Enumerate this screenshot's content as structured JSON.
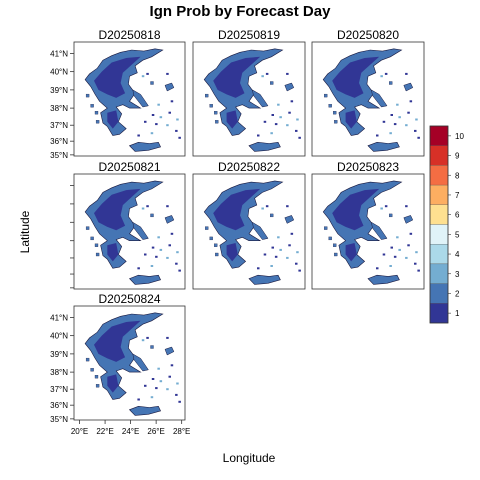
{
  "figure": {
    "title": "Ign Prob by Forecast Day",
    "xlabel": "Longitude",
    "ylabel": "Latitude"
  },
  "panels": [
    {
      "label": "D20250818",
      "dominant_class": 1,
      "secondary_class": 2
    },
    {
      "label": "D20250819",
      "dominant_class": 1,
      "secondary_class": 2
    },
    {
      "label": "D20250820",
      "dominant_class": 1,
      "secondary_class": 2
    },
    {
      "label": "D20250821",
      "dominant_class": 1,
      "secondary_class": 2
    },
    {
      "label": "D20250822",
      "dominant_class": 1,
      "secondary_class": 2
    },
    {
      "label": "D20250823",
      "dominant_class": 1,
      "secondary_class": 2
    },
    {
      "label": "D20250824",
      "dominant_class": 1,
      "secondary_class": 2
    }
  ],
  "axes": {
    "lat_ticks": [
      "41°N",
      "40°N",
      "39°N",
      "38°N",
      "37°N",
      "36°N",
      "35°N"
    ],
    "lon_ticks": [
      "20°E",
      "22°E",
      "24°E",
      "26°E",
      "28°E"
    ]
  },
  "legend": {
    "classes": [
      {
        "label": "10",
        "color": "#a50026"
      },
      {
        "label": "9",
        "color": "#d73027"
      },
      {
        "label": "8",
        "color": "#f46d43"
      },
      {
        "label": "7",
        "color": "#fdae61"
      },
      {
        "label": "6",
        "color": "#fee090"
      },
      {
        "label": "5",
        "color": "#e0f3f8"
      },
      {
        "label": "4",
        "color": "#abd9e9"
      },
      {
        "label": "3",
        "color": "#74add1"
      },
      {
        "label": "2",
        "color": "#4575b4"
      },
      {
        "label": "1",
        "color": "#313695"
      }
    ]
  }
}
